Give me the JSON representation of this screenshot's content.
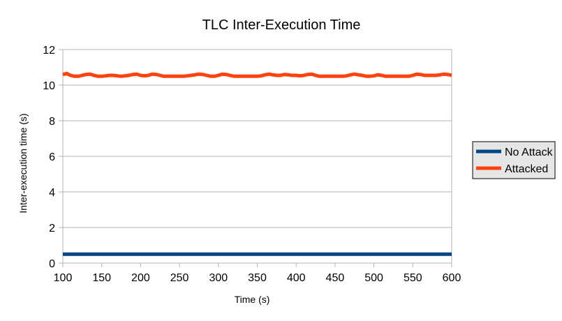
{
  "chart_data": {
    "type": "line",
    "title": "TLC Inter-Execution Time",
    "xlabel": "Time (s)",
    "ylabel": "Inter-execution time (s)",
    "xlim": [
      100,
      600
    ],
    "ylim": [
      0,
      12
    ],
    "xticks": [
      "100",
      "150",
      "200",
      "250",
      "300",
      "350",
      "400",
      "450",
      "500",
      "550",
      "600"
    ],
    "yticks": [
      "0",
      "2",
      "4",
      "6",
      "8",
      "10",
      "12"
    ],
    "grid": "horizontal",
    "legend_position": "right",
    "series": [
      {
        "name": "No Attack",
        "color": "#004586",
        "x": [
          100,
          150,
          200,
          250,
          300,
          350,
          400,
          450,
          500,
          550,
          600
        ],
        "y": [
          0.5,
          0.5,
          0.5,
          0.5,
          0.5,
          0.5,
          0.5,
          0.5,
          0.5,
          0.5,
          0.5
        ]
      },
      {
        "name": "Attacked",
        "color": "#ff420e",
        "x": [
          100,
          105,
          110,
          115,
          120,
          125,
          130,
          135,
          140,
          145,
          150,
          155,
          160,
          165,
          170,
          175,
          180,
          185,
          190,
          195,
          200,
          205,
          210,
          215,
          220,
          225,
          230,
          235,
          240,
          245,
          250,
          255,
          260,
          265,
          270,
          275,
          280,
          285,
          290,
          295,
          300,
          305,
          310,
          315,
          320,
          325,
          330,
          335,
          340,
          345,
          350,
          355,
          360,
          365,
          370,
          375,
          380,
          385,
          390,
          395,
          400,
          405,
          410,
          415,
          420,
          425,
          430,
          435,
          440,
          445,
          450,
          455,
          460,
          465,
          470,
          475,
          480,
          485,
          490,
          495,
          500,
          505,
          510,
          515,
          520,
          525,
          530,
          535,
          540,
          545,
          550,
          555,
          560,
          565,
          570,
          575,
          580,
          585,
          590,
          595,
          600
        ],
        "y": [
          10.6,
          10.65,
          10.55,
          10.5,
          10.5,
          10.55,
          10.6,
          10.62,
          10.55,
          10.5,
          10.5,
          10.52,
          10.55,
          10.55,
          10.52,
          10.5,
          10.52,
          10.55,
          10.6,
          10.62,
          10.55,
          10.52,
          10.55,
          10.62,
          10.6,
          10.55,
          10.5,
          10.5,
          10.5,
          10.5,
          10.5,
          10.5,
          10.52,
          10.55,
          10.58,
          10.62,
          10.6,
          10.55,
          10.5,
          10.5,
          10.55,
          10.62,
          10.6,
          10.55,
          10.5,
          10.5,
          10.5,
          10.5,
          10.5,
          10.5,
          10.5,
          10.52,
          10.58,
          10.62,
          10.58,
          10.55,
          10.55,
          10.6,
          10.58,
          10.55,
          10.55,
          10.52,
          10.55,
          10.6,
          10.62,
          10.55,
          10.5,
          10.5,
          10.5,
          10.5,
          10.5,
          10.5,
          10.5,
          10.52,
          10.58,
          10.62,
          10.58,
          10.55,
          10.5,
          10.5,
          10.52,
          10.58,
          10.55,
          10.5,
          10.5,
          10.5,
          10.5,
          10.5,
          10.5,
          10.5,
          10.55,
          10.62,
          10.6,
          10.55,
          10.55,
          10.55,
          10.55,
          10.58,
          10.62,
          10.6,
          10.55
        ]
      }
    ]
  }
}
